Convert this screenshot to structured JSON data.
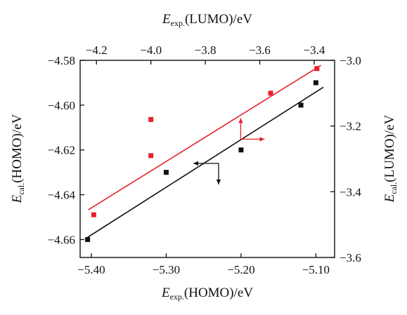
{
  "chart_data": {
    "type": "scatter",
    "axes": {
      "bottom": {
        "label": {
          "sym": "E",
          "sub": "exp.",
          "rest": "(HOMO)/eV"
        },
        "lim": [
          -5.415,
          -5.075
        ],
        "ticks": [
          -5.4,
          -5.3,
          -5.2,
          -5.1
        ],
        "tick_labels": [
          "−5.40",
          "−5.30",
          "−5.20",
          "−5.10"
        ]
      },
      "top": {
        "label": {
          "sym": "E",
          "sub": "exp.",
          "rest": "(LUMO)/eV"
        },
        "lim": [
          -4.26,
          -3.325
        ],
        "ticks": [
          -4.2,
          -4.0,
          -3.8,
          -3.6,
          -3.4
        ],
        "tick_labels": [
          "−4.2",
          "−4.0",
          "−3.8",
          "−3.6",
          "−3.4"
        ]
      },
      "left": {
        "label": {
          "sym": "E",
          "sub": "cal.",
          "rest": "(HOMO)/eV"
        },
        "lim": [
          -4.668,
          -4.58
        ],
        "ticks": [
          -4.66,
          -4.64,
          -4.62,
          -4.6,
          -4.58
        ],
        "tick_labels": [
          "−4.66",
          "−4.64",
          "−4.62",
          "−4.60",
          "−4.58"
        ]
      },
      "right": {
        "label": {
          "sym": "E",
          "sub": "cal.",
          "rest": "(LUMO)/eV"
        },
        "lim": [
          -3.6,
          -3.0
        ],
        "ticks": [
          -3.6,
          -3.4,
          -3.2,
          -3.0
        ],
        "tick_labels": [
          "−3.6",
          "−3.4",
          "−3.2",
          "−3.0"
        ]
      }
    },
    "series": [
      {
        "axes": [
          "bottom",
          "left"
        ],
        "color": "#111111",
        "marker": "square",
        "points": [
          {
            "x": -5.405,
            "y": -4.66
          },
          {
            "x": -5.3,
            "y": -4.63
          },
          {
            "x": -5.2,
            "y": -4.62
          },
          {
            "x": -5.12,
            "y": -4.6
          },
          {
            "x": -5.1,
            "y": -4.59
          }
        ],
        "fit": {
          "from": [
            -5.405,
            -4.659
          ],
          "to": [
            -5.09,
            -4.592
          ]
        }
      },
      {
        "axes": [
          "top",
          "right"
        ],
        "color": "#e8202a",
        "marker": "square",
        "points": [
          {
            "x": -4.21,
            "y": -3.47
          },
          {
            "x": -4.0,
            "y": -3.18
          },
          {
            "x": -4.0,
            "y": -3.29
          },
          {
            "x": -3.56,
            "y": -3.1
          },
          {
            "x": -3.39,
            "y": -3.025
          }
        ],
        "fit": {
          "from": [
            -4.23,
            -3.455
          ],
          "to": [
            -3.375,
            -3.015
          ]
        }
      }
    ],
    "axis_indicators": [
      {
        "color": "#111111",
        "target_axes": [
          "left",
          "bottom"
        ],
        "anchor": {
          "x": -5.23,
          "y": -4.626
        }
      },
      {
        "color": "#e8202a",
        "target_axes": [
          "top",
          "right"
        ],
        "anchor": {
          "x": -3.67,
          "y": -3.24
        }
      }
    ],
    "grid": false,
    "legend": "none"
  }
}
